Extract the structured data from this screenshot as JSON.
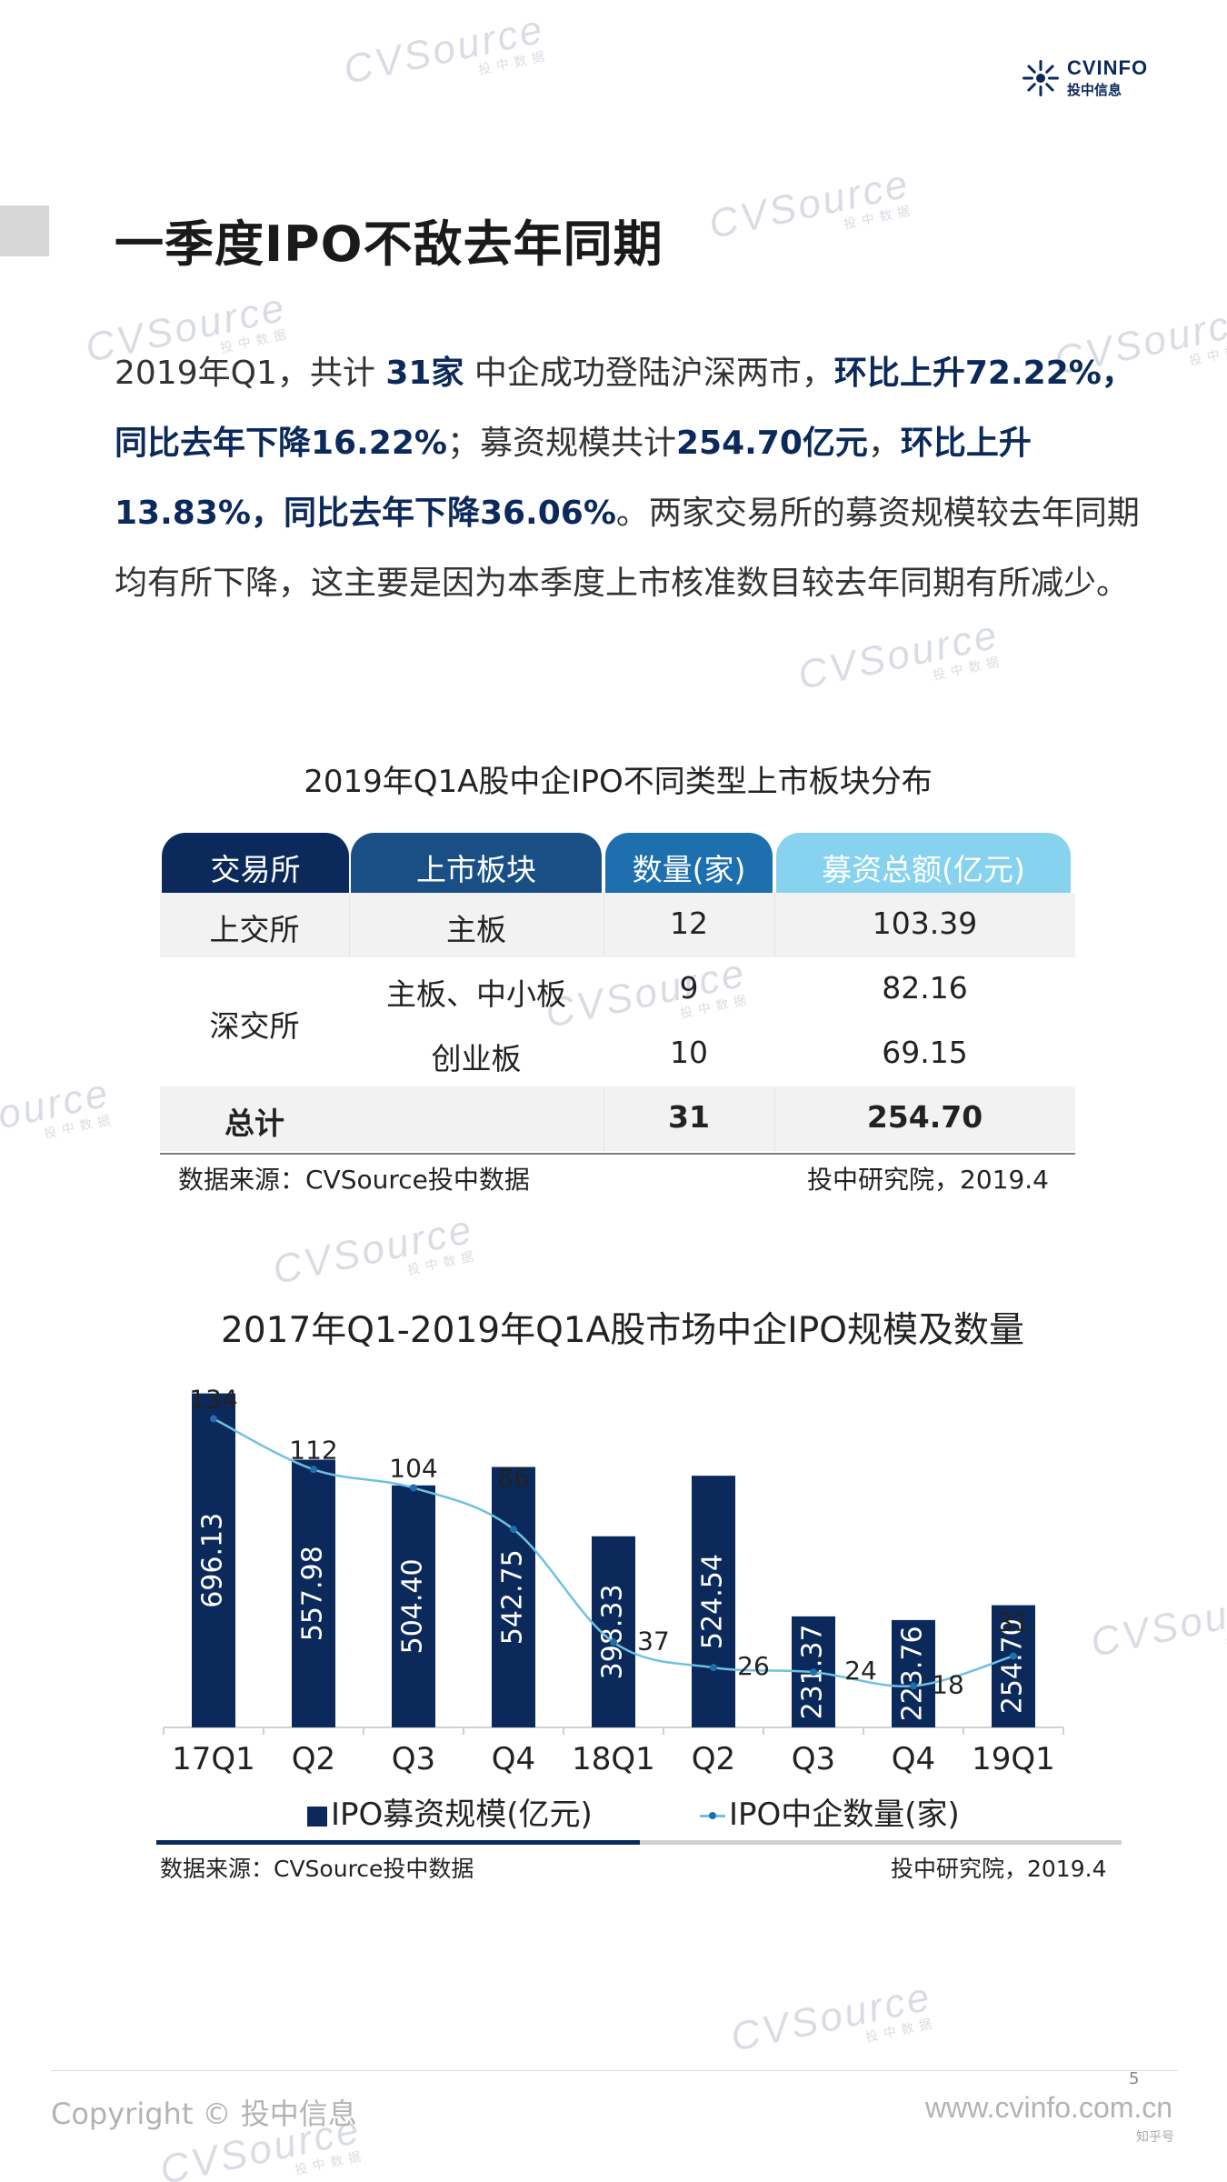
{
  "brand": {
    "logo_en": "CVINFO",
    "logo_cn": "投中信息",
    "navy": "#0b2a5b",
    "light_blue": "#86d2ef"
  },
  "watermark": {
    "text": "CVSource",
    "sub": "投中数据"
  },
  "title": "一季度IPO不敌去年同期",
  "intro": {
    "p1": "2019年Q1，共计 ",
    "h1": "31家",
    "p2": " 中企成功登陆沪深两市，",
    "h2": "环比上升72.22%，同比去年下降16.22%",
    "p3": "；募资规模共计",
    "h3": "254.70亿元",
    "p4": "，",
    "h4": "环比上升13.83%，同比去年下降36.06%",
    "p5": "。两家交易所的募资规模较去年同期均有所下降，这主要是因为本季度上市核准数目较去年同期有所减少。"
  },
  "table": {
    "title": "2019年Q1A股中企IPO不同类型上市板块分布",
    "headers": [
      "交易所",
      "上市板块",
      "数量(家)",
      "募资总额(亿元)"
    ],
    "rows": [
      [
        "上交所",
        "主板",
        "12",
        "103.39"
      ],
      [
        "深交所",
        "主板、中小板",
        "9",
        "82.16"
      ],
      [
        "",
        "创业板",
        "10",
        "69.15"
      ],
      [
        "总计",
        "",
        "31",
        "254.70"
      ]
    ],
    "source": "数据来源：CVSource投中数据",
    "credit": "投中研究院，2019.4"
  },
  "chart_data": {
    "type": "bar",
    "title": "2017年Q1-2019年Q1A股市场中企IPO规模及数量",
    "categories": [
      "17Q1",
      "Q2",
      "Q3",
      "Q4",
      "18Q1",
      "Q2",
      "Q3",
      "Q4",
      "19Q1"
    ],
    "series": [
      {
        "name": "IPO募资规模(亿元)",
        "type": "bar",
        "values": [
          696.13,
          557.98,
          504.4,
          542.75,
          398.33,
          524.54,
          231.37,
          223.76,
          254.7
        ],
        "labels": [
          "696.13",
          "557.98",
          "504.40",
          "542.75",
          "398.33",
          "524.54",
          "231.37",
          "223.76",
          "254.70"
        ],
        "color": "#0b2a5b"
      },
      {
        "name": "IPO中企数量(家)",
        "type": "line",
        "values": [
          134,
          112,
          104,
          86,
          37,
          26,
          24,
          18,
          31
        ],
        "color": "#6ec2e0"
      }
    ],
    "bar_ylim": [
      0,
      720
    ],
    "line_ylim": [
      0,
      150
    ],
    "legend": "bottom",
    "source": "数据来源：CVSource投中数据",
    "credit": "投中研究院，2019.4"
  },
  "footer": {
    "page": "5",
    "copyright": "Copyright © 投中信息",
    "website": "www.cvinfo.com.cn",
    "wechat": "知乎号"
  }
}
